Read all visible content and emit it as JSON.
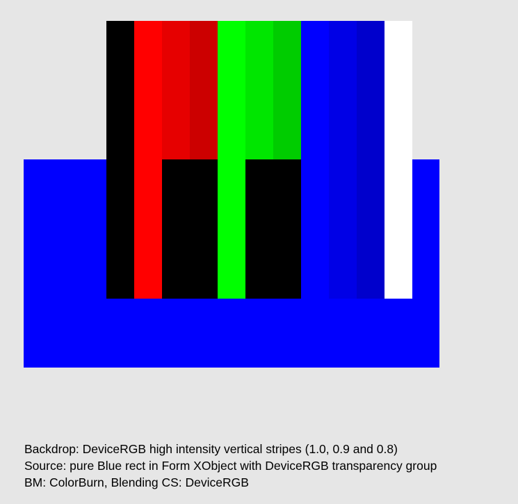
{
  "colors": {
    "background": "#e6e6e6",
    "source_blue": "#0000ff",
    "black": "#000000",
    "white": "#ffffff",
    "stripes_top": [
      "#000000",
      "#ff0000",
      "#e60000",
      "#cc0000",
      "#00ff00",
      "#00e600",
      "#00cc00",
      "#0000ff",
      "#0000e6",
      "#0000cc",
      "#ffffff"
    ],
    "stripes_overlap": [
      "#000000",
      "#ff0000",
      "#000000",
      "#000000",
      "#00ff00",
      "#000000",
      "#000000",
      "#0000ff",
      "#0000e6",
      "#0000cc",
      "#ffffff"
    ]
  },
  "caption": {
    "line1": "Backdrop: DeviceRGB high intensity vertical stripes (1.0, 0.9 and 0.8)",
    "line2": "Source: pure Blue rect in Form XObject with DeviceRGB transparency group",
    "line3": "BM: ColorBurn, Blending CS: DeviceRGB"
  }
}
